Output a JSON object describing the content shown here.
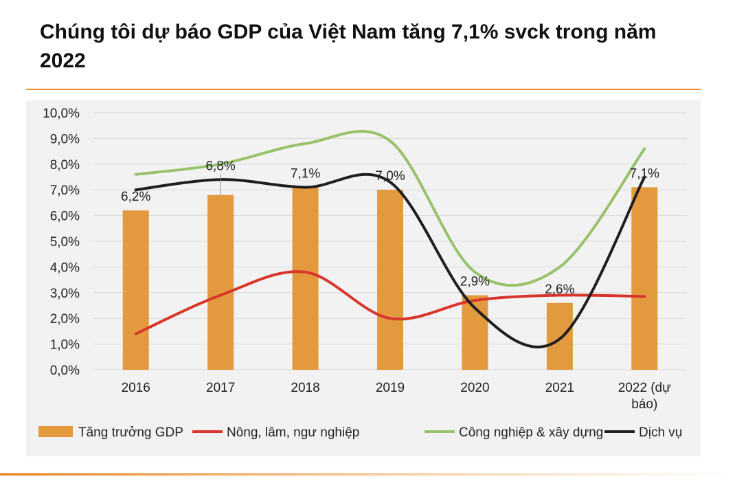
{
  "title": "Chúng tôi dự báo GDP của Việt Nam tăng 7,1% svck trong năm 2022",
  "colors": {
    "accent": "#e8923a",
    "gdp_bar": "#e39a3f",
    "agriculture": "#d9362b",
    "industry": "#96c26a",
    "services": "#1f1f1f",
    "grid": "#d9d9d9",
    "card": "#f2f2f2"
  },
  "chart_data": {
    "type": "bar+line",
    "categories": [
      "2016",
      "2017",
      "2018",
      "2019",
      "2020",
      "2021",
      "2022 (dự báo)"
    ],
    "category_lines": [
      [
        "2016"
      ],
      [
        "2017"
      ],
      [
        "2018"
      ],
      [
        "2019"
      ],
      [
        "2020"
      ],
      [
        "2021"
      ],
      [
        "2022 (dự",
        "báo)"
      ]
    ],
    "ylim": [
      0,
      10
    ],
    "yticks": [
      "0,0%",
      "1,0%",
      "2,0%",
      "3,0%",
      "4,0%",
      "5,0%",
      "6,0%",
      "7,0%",
      "8,0%",
      "9,0%",
      "10,0%"
    ],
    "grid": true,
    "legend_position": "bottom",
    "series": [
      {
        "name": "Tăng trưởng GDP",
        "kind": "bar",
        "color": "#e39a3f",
        "values": [
          6.2,
          6.8,
          7.1,
          7.0,
          2.9,
          2.6,
          7.1
        ],
        "labels": [
          "6,2%",
          "6,8%",
          "7,1%",
          "7,0%",
          "2,9%",
          "2,6%",
          "7,1%"
        ]
      },
      {
        "name": "Nông, lâm, ngư nghiệp",
        "kind": "line",
        "color": "#d9362b",
        "values": [
          1.4,
          2.9,
          3.8,
          2.0,
          2.7,
          2.9,
          2.85
        ]
      },
      {
        "name": "Công nghiệp & xây dựng",
        "kind": "line",
        "color": "#96c26a",
        "values": [
          7.6,
          8.0,
          8.8,
          8.9,
          3.8,
          4.0,
          8.6
        ]
      },
      {
        "name": "Dịch vụ",
        "kind": "line",
        "color": "#1f1f1f",
        "values": [
          7.0,
          7.4,
          7.1,
          7.3,
          2.4,
          1.2,
          7.5
        ]
      }
    ]
  }
}
